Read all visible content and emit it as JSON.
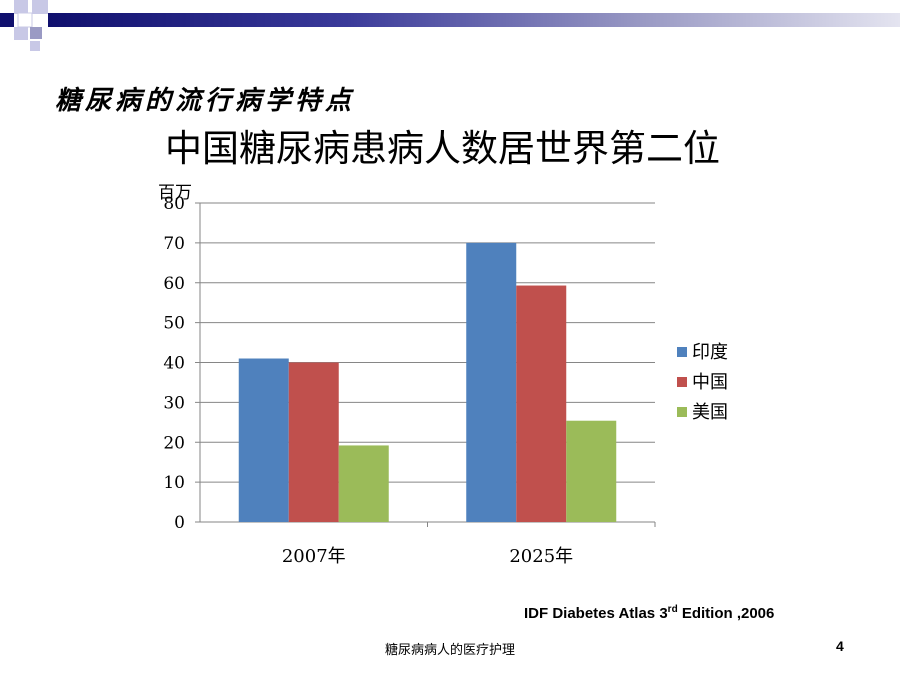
{
  "slide": {
    "section_title": "糖尿病的流行病学特点",
    "footer": "糖尿病病人的医疗护理",
    "page_number": "4",
    "source_prefix": "IDF Diabetes Atlas 3",
    "source_sup": "rd",
    "source_suffix": " Edition ,2006",
    "colors": {
      "accent_dark": "#10106e",
      "accent_light": "#9a9ac4"
    }
  },
  "chart_data": {
    "type": "bar",
    "title": "中国糖尿病患病人数居世界第二位",
    "ylabel": "百万",
    "xlabel": "",
    "categories": [
      "2007年",
      "2025年"
    ],
    "series": [
      {
        "name": "印度",
        "values": [
          41,
          70
        ],
        "color": "#4f81bd"
      },
      {
        "name": "中国",
        "values": [
          40,
          59.3
        ],
        "color": "#c0504d"
      },
      {
        "name": "美国",
        "values": [
          19.2,
          25.4
        ],
        "color": "#9bbb59"
      }
    ],
    "ylim": [
      0,
      80
    ],
    "yticks": [
      "0",
      "10",
      "20",
      "30",
      "40",
      "50",
      "60",
      "70",
      "80"
    ],
    "grid": true,
    "legend": "right"
  }
}
